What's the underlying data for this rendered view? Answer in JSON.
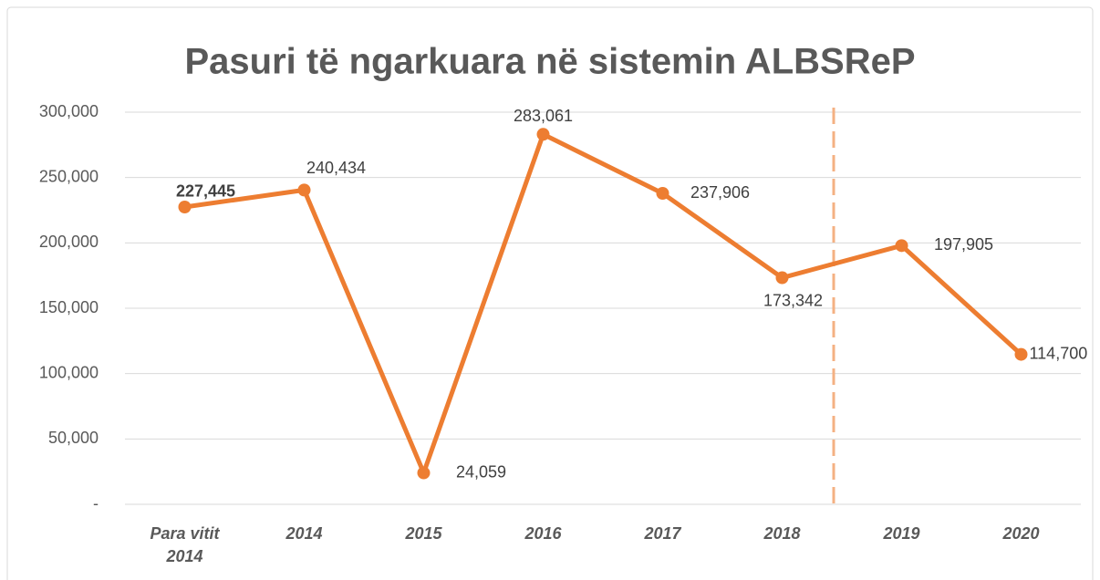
{
  "chart_data": {
    "type": "line",
    "title": "Pasuri të ngarkuara në sistemin ALBSReP",
    "categories": [
      "Para vitit 2014",
      "2014",
      "2015",
      "2016",
      "2017",
      "2018",
      "2019",
      "2020"
    ],
    "series": [
      {
        "name": "Pasuri",
        "color": "#ed7d31",
        "values": [
          227445,
          240434,
          24059,
          283061,
          237906,
          173342,
          197905,
          114700
        ],
        "value_labels": [
          "227,445",
          "240,434",
          "24,059",
          "283,061",
          "237,906",
          "173,342",
          "197,905",
          "114,700"
        ]
      }
    ],
    "ylim": [
      0,
      300000
    ],
    "yticks": [
      {
        "value": 0,
        "label": "-"
      },
      {
        "value": 50000,
        "label": "50,000"
      },
      {
        "value": 100000,
        "label": "100,000"
      },
      {
        "value": 150000,
        "label": "150,000"
      },
      {
        "value": 200000,
        "label": "200,000"
      },
      {
        "value": 250000,
        "label": "250,000"
      },
      {
        "value": 300000,
        "label": "300,000"
      }
    ],
    "grid": true
  }
}
